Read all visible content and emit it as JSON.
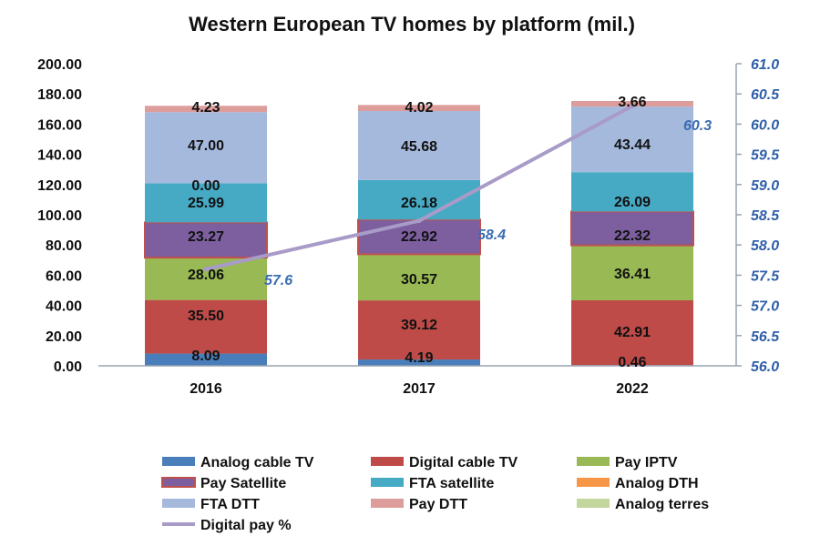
{
  "chart_data": {
    "type": "bar",
    "stacked": true,
    "title": "Western European TV homes by platform (mil.)",
    "categories": [
      "2016",
      "2017",
      "2022"
    ],
    "y_left": {
      "min": 0,
      "max": 200,
      "step": 20,
      "tick_labels": [
        "0.00",
        "20.00",
        "40.00",
        "60.00",
        "80.00",
        "100.00",
        "120.00",
        "140.00",
        "160.00",
        "180.00",
        "200.00"
      ]
    },
    "y_right": {
      "min": 56.0,
      "max": 61.0,
      "step": 0.5,
      "tick_labels": [
        "56.0",
        "56.5",
        "57.0",
        "57.5",
        "58.0",
        "58.5",
        "59.0",
        "59.5",
        "60.0",
        "60.5",
        "61.0"
      ]
    },
    "series": [
      {
        "name": "Analog cable TV",
        "color": "#4a7ebb",
        "values": [
          8.09,
          4.19,
          0.46
        ],
        "labels": [
          "8.09",
          "4.19",
          "0.46"
        ]
      },
      {
        "name": "Digital cable TV",
        "color": "#be4b48",
        "values": [
          35.5,
          39.12,
          42.91
        ],
        "labels": [
          "35.50",
          "39.12",
          "42.91"
        ]
      },
      {
        "name": "Pay IPTV",
        "color": "#98b954",
        "values": [
          28.06,
          30.57,
          36.41
        ],
        "labels": [
          "28.06",
          "30.57",
          "36.41"
        ]
      },
      {
        "name": "Pay Satellite",
        "color": "#7d5fa0",
        "outline": "#c0504d",
        "values": [
          23.27,
          22.92,
          22.32
        ],
        "labels": [
          "23.27",
          "22.92",
          "22.32"
        ]
      },
      {
        "name": "FTA satellite",
        "color": "#46aac5",
        "values": [
          25.99,
          26.18,
          26.09
        ],
        "labels": [
          "25.99",
          "26.18",
          "26.09"
        ]
      },
      {
        "name": "Analog DTH",
        "color": "#f79646",
        "values": [
          0.0,
          0.0,
          0.0
        ],
        "labels": [
          "0.00",
          "",
          ""
        ]
      },
      {
        "name": "FTA DTT",
        "color": "#a5b9dd",
        "values": [
          47.0,
          45.68,
          43.44
        ],
        "labels": [
          "47.00",
          "45.68",
          "43.44"
        ]
      },
      {
        "name": "Pay DTT",
        "color": "#dc9d9b",
        "values": [
          4.23,
          4.02,
          3.66
        ],
        "labels": [
          "4.23",
          "4.02",
          "3.66"
        ]
      },
      {
        "name": "Analog terres",
        "color": "#c3d69b",
        "values": [
          0,
          0,
          0
        ],
        "labels": [
          "",
          "",
          ""
        ]
      }
    ],
    "line_series": {
      "name": "Digital pay %",
      "color": "#a99bc8",
      "axis": "right",
      "values": [
        57.6,
        58.4,
        60.3
      ],
      "labels": [
        "57.6",
        "58.4",
        "60.3"
      ]
    },
    "legend_position": "bottom"
  }
}
